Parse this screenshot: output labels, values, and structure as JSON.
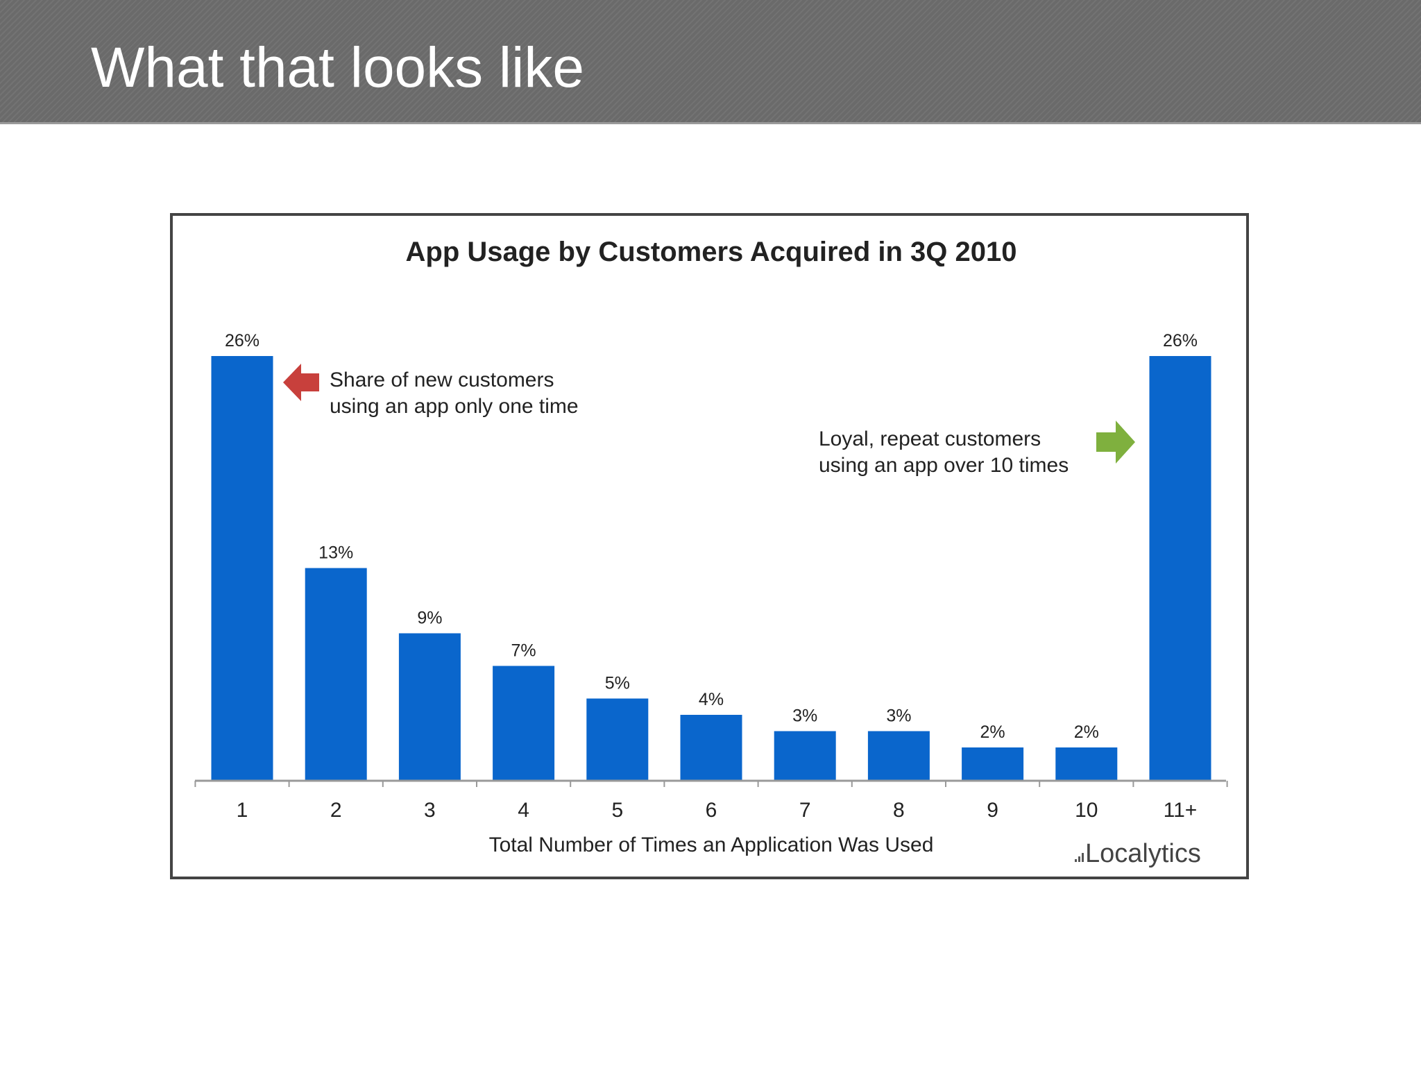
{
  "slide": {
    "title": "What that looks like"
  },
  "colors": {
    "bar": "#0a66cc",
    "axis": "#999999",
    "left_arrow": "#c8403c",
    "right_arrow": "#7fb03e",
    "text": "#222222"
  },
  "annotations": {
    "left": {
      "line1": "Share of new customers",
      "line2": "using an app only one time",
      "icon": "left-arrow-icon"
    },
    "right": {
      "line1": "Loyal, repeat customers",
      "line2": "using an app over 10 times",
      "icon": "right-arrow-icon"
    }
  },
  "branding": {
    "logo_text": "Localytics"
  },
  "chart_data": {
    "type": "bar",
    "title": "App Usage by Customers Acquired in 3Q 2010",
    "xlabel": "Total Number of Times an Application Was Used",
    "ylabel": "",
    "categories": [
      "1",
      "2",
      "3",
      "4",
      "5",
      "6",
      "7",
      "8",
      "9",
      "10",
      "11+"
    ],
    "values": [
      26,
      13,
      9,
      7,
      5,
      4,
      3,
      3,
      2,
      2,
      26
    ],
    "value_labels": [
      "26%",
      "13%",
      "9%",
      "7%",
      "5%",
      "4%",
      "3%",
      "3%",
      "2%",
      "2%",
      "26%"
    ],
    "ylim": [
      0,
      26
    ],
    "grid": false,
    "legend": "none"
  }
}
